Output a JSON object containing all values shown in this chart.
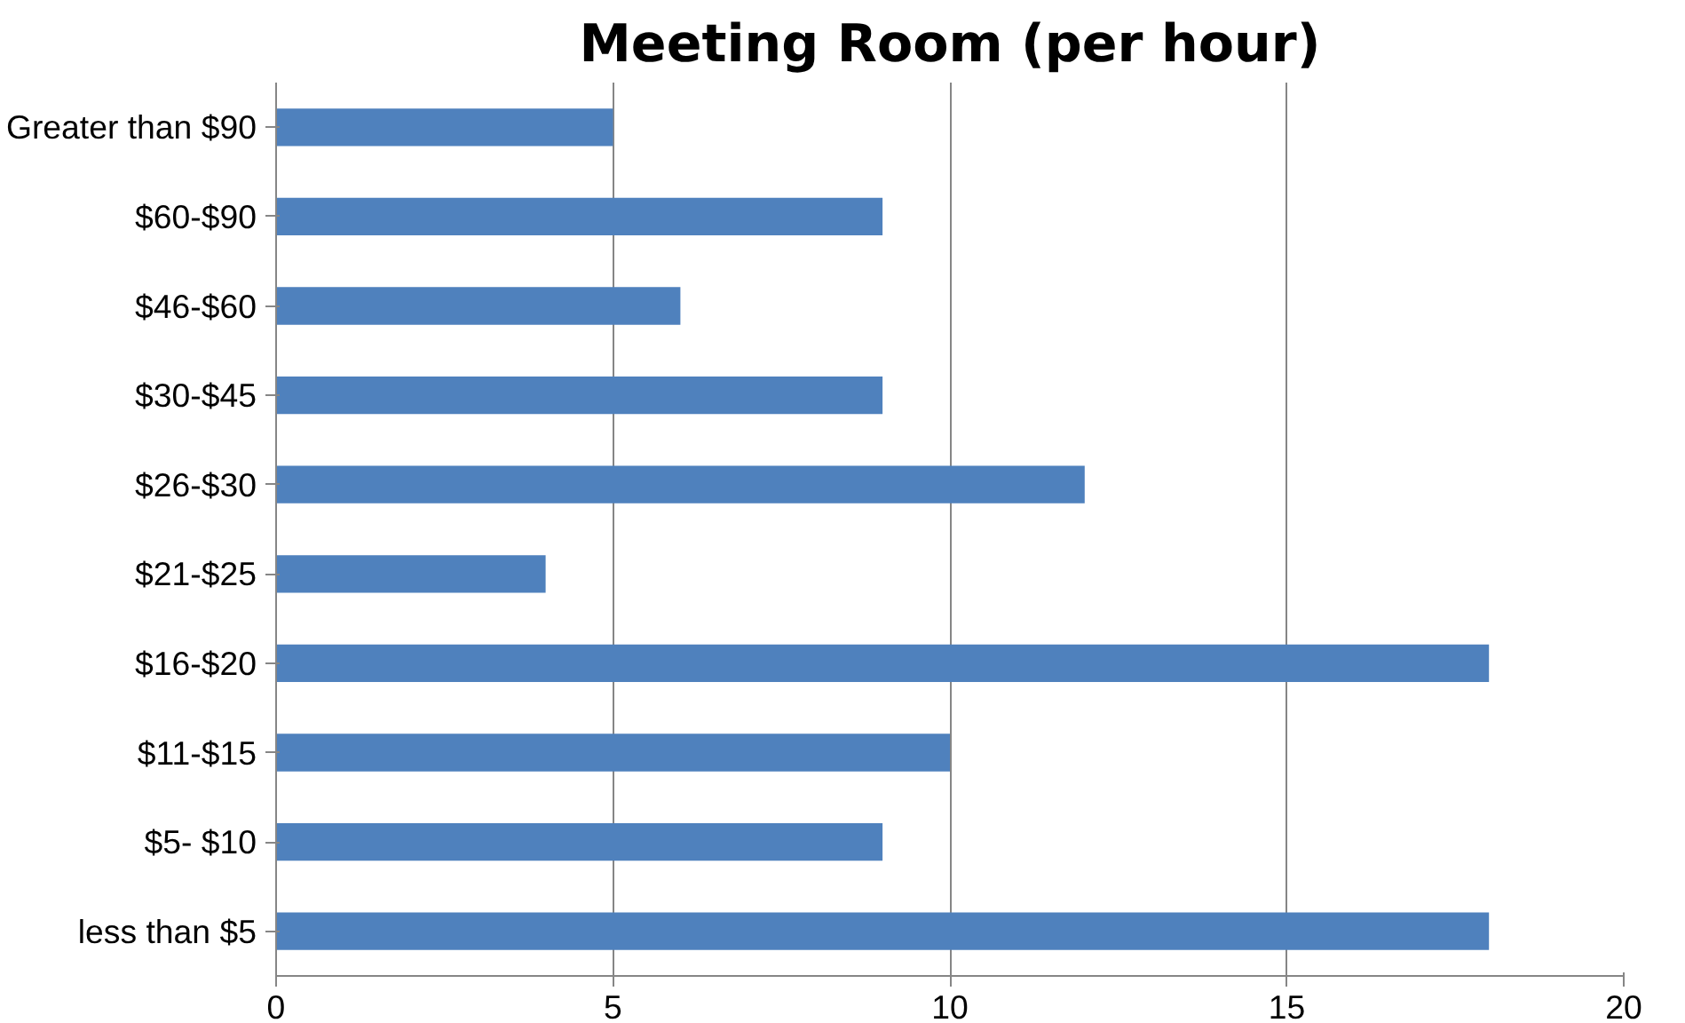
{
  "chart_data": {
    "type": "bar",
    "orientation": "horizontal",
    "title": "Meeting Room (per hour)",
    "categories": [
      "Greater than $90",
      "$60-$90",
      "$46-$60",
      "$30-$45",
      "$26-$30",
      "$21-$25",
      "$16-$20",
      "$11-$15",
      "$5- $10",
      "less than $5"
    ],
    "values": [
      5,
      9,
      6,
      9,
      12,
      4,
      18,
      10,
      9,
      18
    ],
    "color": "#4f81bd",
    "xlim": [
      0,
      20
    ],
    "xticks": [
      0,
      5,
      10,
      15,
      20
    ],
    "grid": "x"
  }
}
